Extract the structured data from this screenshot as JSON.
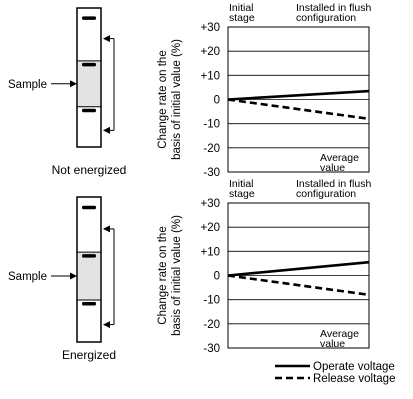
{
  "diagrams": [
    {
      "sample_label": "Sample",
      "caption": "Not energized"
    },
    {
      "sample_label": "Sample",
      "caption": "Energized"
    }
  ],
  "chart_data": [
    {
      "type": "line",
      "header_left": "Initial\nstage",
      "header_right": "Installed in flush\nconfiguration",
      "ylabel": "Change rate on the\nbasis of initial value (%)",
      "yticks": [
        "+30",
        "+20",
        "+10",
        "0",
        "-10",
        "-20",
        "-30"
      ],
      "ylim": [
        -30,
        30
      ],
      "grid": true,
      "annotation": "Average\nvalue",
      "series": [
        {
          "name": "Operate voltage",
          "style": "solid",
          "x": [
            0,
            1
          ],
          "y": [
            0,
            3.5
          ]
        },
        {
          "name": "Release voltage",
          "style": "dashed",
          "x": [
            0,
            1
          ],
          "y": [
            0,
            -8
          ]
        }
      ]
    },
    {
      "type": "line",
      "header_left": "Initial\nstage",
      "header_right": "Installed in flush\nconfiguration",
      "ylabel": "Change rate on the\nbasis of initial value (%)",
      "yticks": [
        "+30",
        "+20",
        "+10",
        "0",
        "-10",
        "-20",
        "-30"
      ],
      "ylim": [
        -30,
        30
      ],
      "grid": true,
      "annotation": "Average\nvalue",
      "series": [
        {
          "name": "Operate voltage",
          "style": "solid",
          "x": [
            0,
            1
          ],
          "y": [
            0,
            5.5
          ]
        },
        {
          "name": "Release voltage",
          "style": "dashed",
          "x": [
            0,
            1
          ],
          "y": [
            0,
            -8
          ]
        }
      ]
    }
  ],
  "legend": {
    "position": "bottom-right",
    "items": [
      {
        "label": "Operate voltage",
        "style": "solid"
      },
      {
        "label": "Release voltage",
        "style": "dashed"
      }
    ]
  }
}
